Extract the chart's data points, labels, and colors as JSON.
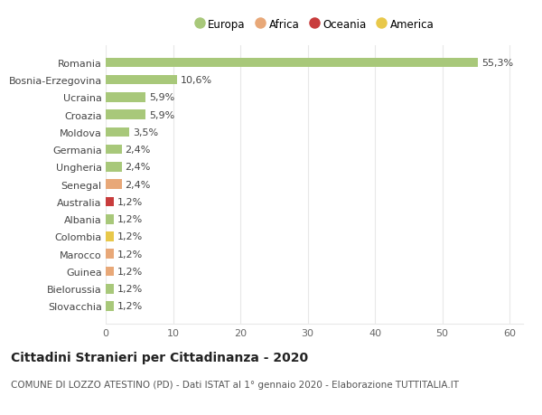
{
  "countries": [
    "Romania",
    "Bosnia-Erzegovina",
    "Ucraina",
    "Croazia",
    "Moldova",
    "Germania",
    "Ungheria",
    "Senegal",
    "Australia",
    "Albania",
    "Colombia",
    "Marocco",
    "Guinea",
    "Bielorussia",
    "Slovacchia"
  ],
  "values": [
    55.3,
    10.6,
    5.9,
    5.9,
    3.5,
    2.4,
    2.4,
    2.4,
    1.2,
    1.2,
    1.2,
    1.2,
    1.2,
    1.2,
    1.2
  ],
  "labels": [
    "55,3%",
    "10,6%",
    "5,9%",
    "5,9%",
    "3,5%",
    "2,4%",
    "2,4%",
    "2,4%",
    "1,2%",
    "1,2%",
    "1,2%",
    "1,2%",
    "1,2%",
    "1,2%",
    "1,2%"
  ],
  "continents": [
    "Europa",
    "Europa",
    "Europa",
    "Europa",
    "Europa",
    "Europa",
    "Europa",
    "Africa",
    "Oceania",
    "Europa",
    "America",
    "Africa",
    "Africa",
    "Europa",
    "Europa"
  ],
  "continent_colors": {
    "Europa": "#a8c87a",
    "Africa": "#e8a878",
    "Oceania": "#c83c3c",
    "America": "#e8c84a"
  },
  "legend_order": [
    "Europa",
    "Africa",
    "Oceania",
    "America"
  ],
  "title": "Cittadini Stranieri per Cittadinanza - 2020",
  "subtitle": "COMUNE DI LOZZO ATESTINO (PD) - Dati ISTAT al 1° gennaio 2020 - Elaborazione TUTTITALIA.IT",
  "xlim": [
    0,
    62
  ],
  "background_color": "#ffffff",
  "grid_color": "#e8e8e8",
  "bar_height": 0.55,
  "label_fontsize": 8,
  "tick_fontsize": 8,
  "title_fontsize": 10,
  "subtitle_fontsize": 7.5
}
